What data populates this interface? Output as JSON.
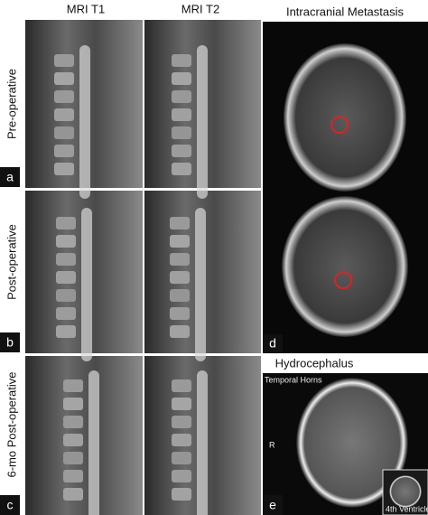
{
  "columns": [
    "MRI T1",
    "MRI T2",
    "Intracranial Metastasis"
  ],
  "rows": [
    "Pre-operative",
    "Post-operative",
    "6-mo Post-operative"
  ],
  "panel_letters": [
    "a",
    "b",
    "c",
    "d",
    "e"
  ],
  "hydrocephalus": {
    "title": "Hydrocephalus",
    "temporal_horns": "Temporal Horns",
    "side_marker": "R",
    "inset_label": "4th Ventricle"
  }
}
